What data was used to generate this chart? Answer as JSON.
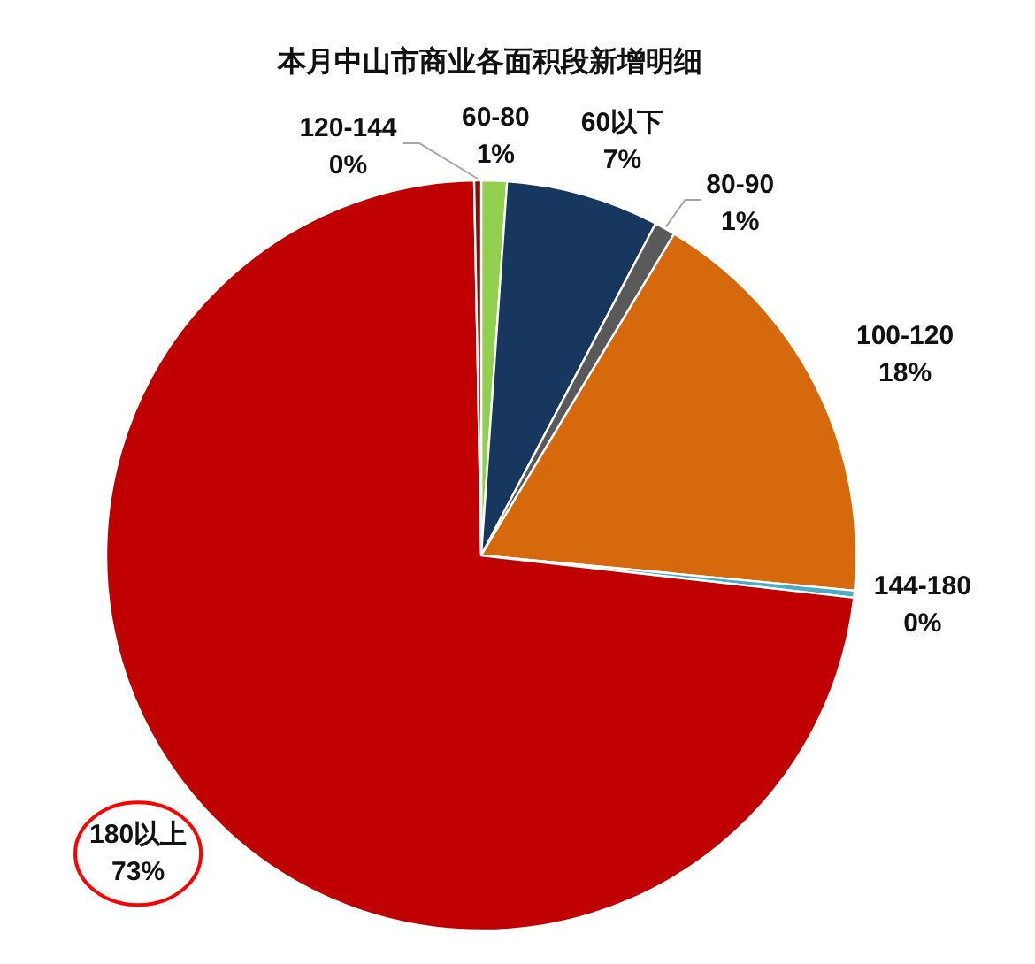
{
  "chart_data": {
    "type": "pie",
    "title": "本月中山市商业各面积段新增明细",
    "categories": [
      "60-80",
      "60以下",
      "80-90",
      "100-120",
      "144-180",
      "180以上",
      "120-144"
    ],
    "values": [
      1.1,
      6.6,
      0.9,
      17.9,
      0.3,
      72.9,
      0.3
    ],
    "value_labels": [
      "1%",
      "7%",
      "1%",
      "18%",
      "0%",
      "73%",
      "0%"
    ],
    "colors": [
      "#92d050",
      "#17375e",
      "#595959",
      "#d6690c",
      "#4bacc6",
      "#c00000",
      "#7f0f0f"
    ]
  }
}
